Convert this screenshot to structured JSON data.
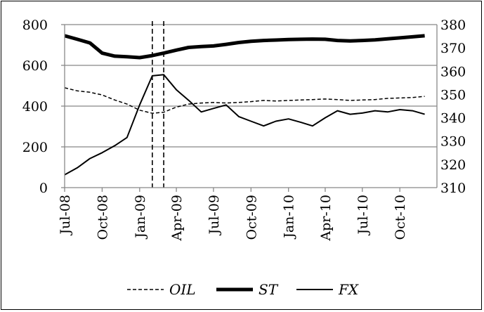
{
  "chart_data": {
    "type": "line",
    "title": "",
    "xlabel": "",
    "ylabel": "",
    "x_ticks": [
      "Jul-08",
      "Oct-08",
      "Jan-09",
      "Apr-09",
      "Jul-09",
      "Oct-09",
      "Jan-10",
      "Apr-10",
      "Jul-10",
      "Oct-10"
    ],
    "x_range": [
      "2008-07-01",
      "2010-12-31"
    ],
    "ylim_left": [
      0,
      800
    ],
    "yticks_left": [
      0,
      200,
      400,
      600,
      800
    ],
    "ylim_right": [
      310,
      380
    ],
    "yticks_right": [
      310,
      320,
      330,
      340,
      350,
      360,
      370,
      380
    ],
    "grid": "horizontal",
    "legend_position": "bottom",
    "vertical_markers": [
      "2009-02-01",
      "2009-03-01"
    ],
    "series": [
      {
        "name": "OIL",
        "axis": "left",
        "style": "dashed",
        "points": [
          [
            "2008-07-01",
            490
          ],
          [
            "2008-08-01",
            475
          ],
          [
            "2008-09-01",
            468
          ],
          [
            "2008-10-01",
            455
          ],
          [
            "2008-11-01",
            430
          ],
          [
            "2008-12-01",
            410
          ],
          [
            "2009-01-01",
            380
          ],
          [
            "2009-02-01",
            365
          ],
          [
            "2009-03-01",
            370
          ],
          [
            "2009-04-01",
            395
          ],
          [
            "2009-05-01",
            410
          ],
          [
            "2009-06-01",
            415
          ],
          [
            "2009-07-01",
            418
          ],
          [
            "2009-08-01",
            415
          ],
          [
            "2009-09-01",
            418
          ],
          [
            "2009-10-01",
            422
          ],
          [
            "2009-11-01",
            428
          ],
          [
            "2009-12-01",
            425
          ],
          [
            "2010-01-01",
            428
          ],
          [
            "2010-02-01",
            430
          ],
          [
            "2010-03-01",
            432
          ],
          [
            "2010-04-01",
            435
          ],
          [
            "2010-05-01",
            432
          ],
          [
            "2010-06-01",
            428
          ],
          [
            "2010-07-01",
            430
          ],
          [
            "2010-08-01",
            432
          ],
          [
            "2010-09-01",
            438
          ],
          [
            "2010-10-01",
            440
          ],
          [
            "2010-11-01",
            442
          ],
          [
            "2010-12-01",
            448
          ]
        ]
      },
      {
        "name": "ST",
        "axis": "left",
        "style": "thick",
        "points": [
          [
            "2008-07-01",
            745
          ],
          [
            "2008-08-01",
            728
          ],
          [
            "2008-09-01",
            710
          ],
          [
            "2008-10-01",
            660
          ],
          [
            "2008-11-01",
            645
          ],
          [
            "2008-12-01",
            642
          ],
          [
            "2009-01-01",
            638
          ],
          [
            "2009-02-01",
            648
          ],
          [
            "2009-03-01",
            660
          ],
          [
            "2009-04-01",
            675
          ],
          [
            "2009-05-01",
            688
          ],
          [
            "2009-06-01",
            692
          ],
          [
            "2009-07-01",
            695
          ],
          [
            "2009-08-01",
            703
          ],
          [
            "2009-09-01",
            712
          ],
          [
            "2009-10-01",
            718
          ],
          [
            "2009-11-01",
            722
          ],
          [
            "2009-12-01",
            724
          ],
          [
            "2010-01-01",
            727
          ],
          [
            "2010-02-01",
            728
          ],
          [
            "2010-03-01",
            729
          ],
          [
            "2010-04-01",
            728
          ],
          [
            "2010-05-01",
            722
          ],
          [
            "2010-06-01",
            720
          ],
          [
            "2010-07-01",
            722
          ],
          [
            "2010-08-01",
            725
          ],
          [
            "2010-09-01",
            730
          ],
          [
            "2010-10-01",
            735
          ],
          [
            "2010-11-01",
            740
          ],
          [
            "2010-12-01",
            745
          ]
        ]
      },
      {
        "name": "FX",
        "axis": "right",
        "style": "thin",
        "points": [
          [
            "2008-07-01",
            315.5
          ],
          [
            "2008-08-01",
            318.5
          ],
          [
            "2008-09-01",
            322.5
          ],
          [
            "2008-10-01",
            325.0
          ],
          [
            "2008-11-01",
            328.0
          ],
          [
            "2008-12-01",
            331.5
          ],
          [
            "2009-01-01",
            345.5
          ],
          [
            "2009-02-01",
            358.0
          ],
          [
            "2009-03-01",
            358.5
          ],
          [
            "2009-04-01",
            352.0
          ],
          [
            "2009-05-01",
            347.5
          ],
          [
            "2009-06-01",
            342.5
          ],
          [
            "2009-07-01",
            344.0
          ],
          [
            "2009-08-01",
            345.5
          ],
          [
            "2009-09-01",
            340.5
          ],
          [
            "2009-10-01",
            338.5
          ],
          [
            "2009-11-01",
            336.5
          ],
          [
            "2009-12-01",
            338.5
          ],
          [
            "2010-01-01",
            339.5
          ],
          [
            "2010-02-01",
            338.0
          ],
          [
            "2010-03-01",
            336.5
          ],
          [
            "2010-04-01",
            340.0
          ],
          [
            "2010-05-01",
            343.0
          ],
          [
            "2010-06-01",
            341.5
          ],
          [
            "2010-07-01",
            342.0
          ],
          [
            "2010-08-01",
            343.0
          ],
          [
            "2010-09-01",
            342.5
          ],
          [
            "2010-10-01",
            343.5
          ],
          [
            "2010-11-01",
            343.0
          ],
          [
            "2010-12-01",
            341.5
          ]
        ]
      }
    ]
  }
}
